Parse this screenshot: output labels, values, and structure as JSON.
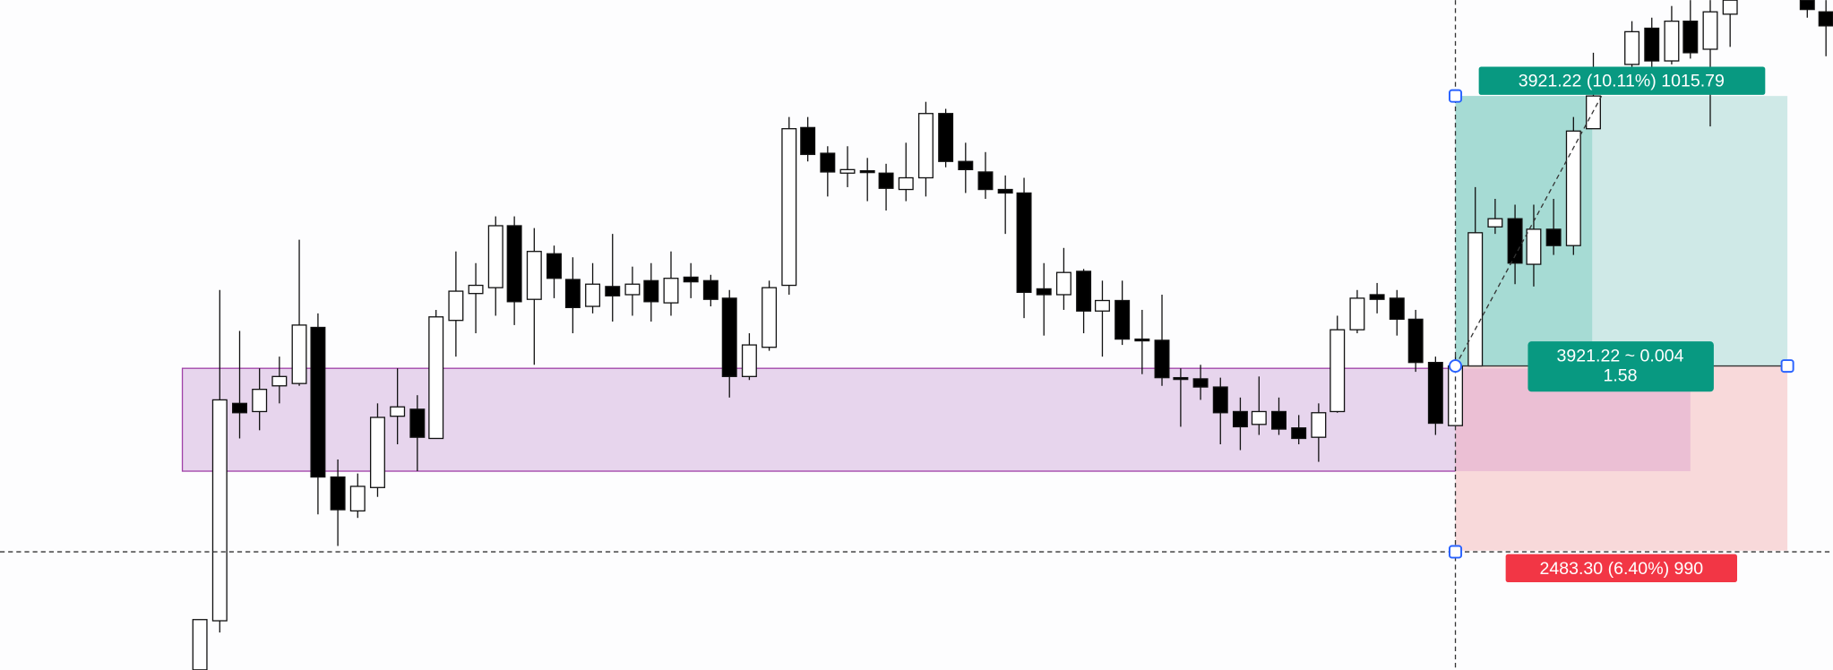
{
  "labels": {
    "target": "3921.22 (10.11%) 1015.79",
    "entry_line1": "3921.22 ~ 0.004",
    "entry_line2": "1.58",
    "stop": "2483.30 (6.40%) 990"
  }
}
